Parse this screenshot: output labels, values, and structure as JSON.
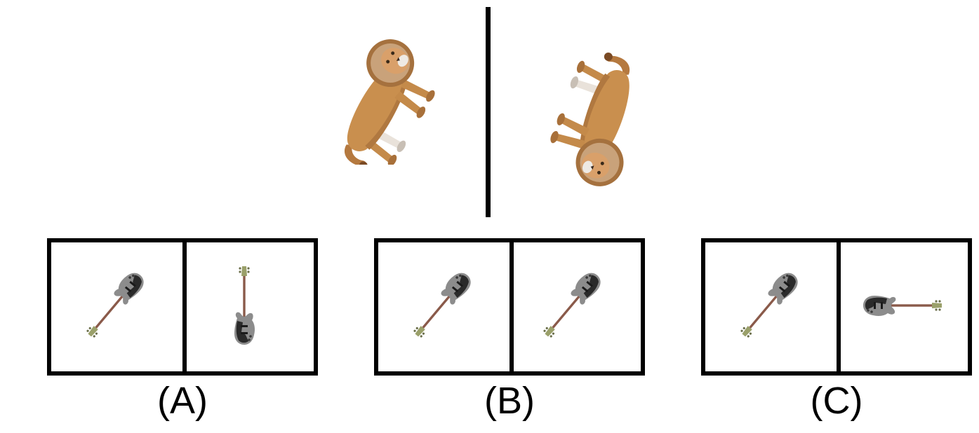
{
  "options": [
    {
      "label": "(A)"
    },
    {
      "label": "(B)"
    },
    {
      "label": "(C)"
    }
  ],
  "icons": {
    "reference": "lion-icon",
    "choice": "bass-guitar-icon"
  },
  "colors": {
    "lion_body": "#c98f4e",
    "lion_mane": "#a5713e",
    "guitar_body": "#8c8c8c",
    "guitar_guard": "#2a2a2a",
    "guitar_neck": "#8a5a4a",
    "guitar_head": "#9aa06a"
  }
}
